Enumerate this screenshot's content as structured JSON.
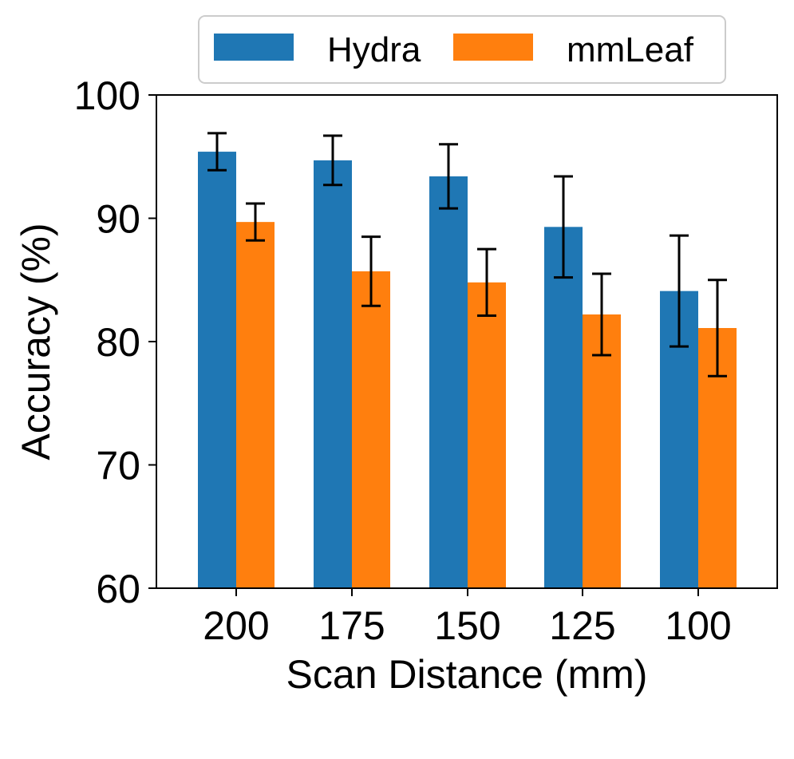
{
  "chart_data": {
    "type": "bar",
    "title": "",
    "xlabel": "Scan Distance (mm)",
    "ylabel": "Accuracy (%)",
    "categories": [
      "200",
      "175",
      "150",
      "125",
      "100"
    ],
    "ylim": [
      60,
      100
    ],
    "yticks": [
      60,
      70,
      80,
      90,
      100
    ],
    "grid": false,
    "legend": {
      "position": "top-center",
      "columns": 2
    },
    "series": [
      {
        "name": "Hydra",
        "color": "#1f77b4",
        "values": [
          95.4,
          94.7,
          93.4,
          89.3,
          84.1
        ],
        "errors": [
          1.5,
          2.0,
          2.6,
          4.1,
          4.5
        ]
      },
      {
        "name": "mmLeaf",
        "color": "#ff7f0e",
        "values": [
          89.7,
          85.7,
          84.8,
          82.2,
          81.1
        ],
        "errors": [
          1.5,
          2.8,
          2.7,
          3.3,
          3.9
        ]
      }
    ]
  }
}
